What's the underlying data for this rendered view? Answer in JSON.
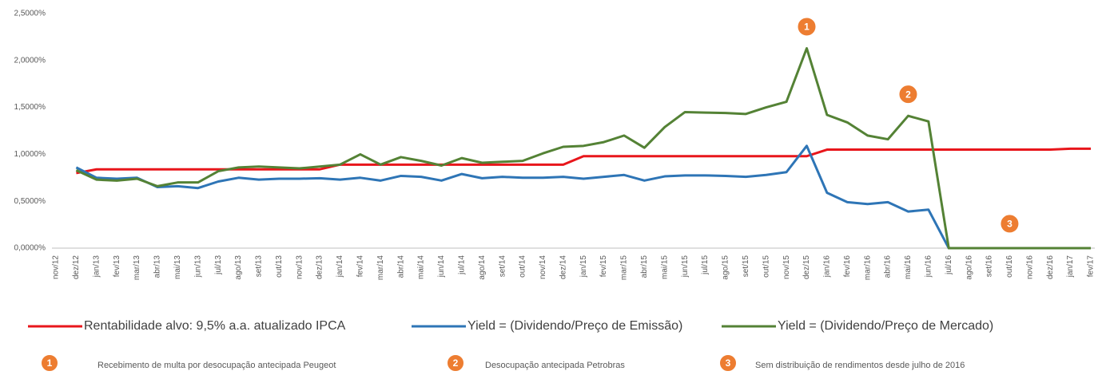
{
  "chart_data": {
    "type": "line",
    "categories": [
      "nov/12",
      "dez/12",
      "jan/13",
      "fev/13",
      "mar/13",
      "abr/13",
      "mai/13",
      "jun/13",
      "jul/13",
      "ago/13",
      "set/13",
      "out/13",
      "nov/13",
      "dez/13",
      "jan/14",
      "fev/14",
      "mar/14",
      "abr/14",
      "mai/14",
      "jun/14",
      "jul/14",
      "ago/14",
      "set/14",
      "out/14",
      "nov/14",
      "dez/14",
      "jan/15",
      "fev/15",
      "mar/15",
      "abr/15",
      "mai/15",
      "jun/15",
      "jul/15",
      "ago/15",
      "set/15",
      "out/15",
      "nov/15",
      "dez/15",
      "jan/16",
      "fev/16",
      "mar/16",
      "abr/16",
      "mai/16",
      "jun/16",
      "jul/16",
      "ago/16",
      "set/16",
      "out/16",
      "nov/16",
      "dez/16",
      "jan/17",
      "fev/17"
    ],
    "series": [
      {
        "name": "Rentabilidade alvo: 9,5% a.a. atualizado IPCA",
        "color": "#e8161b",
        "values": [
          null,
          0.8,
          0.84,
          0.84,
          0.84,
          0.84,
          0.84,
          0.84,
          0.84,
          0.84,
          0.84,
          0.84,
          0.84,
          0.84,
          0.89,
          0.89,
          0.89,
          0.89,
          0.89,
          0.89,
          0.89,
          0.89,
          0.89,
          0.89,
          0.89,
          0.89,
          0.98,
          0.98,
          0.98,
          0.98,
          0.98,
          0.98,
          0.98,
          0.98,
          0.98,
          0.98,
          0.98,
          0.98,
          1.05,
          1.05,
          1.05,
          1.05,
          1.05,
          1.05,
          1.05,
          1.05,
          1.05,
          1.05,
          1.05,
          1.05,
          1.06,
          1.06
        ]
      },
      {
        "name": "Yield = (Dividendo/Preço de Emissão)",
        "color": "#2e75b6",
        "values": [
          null,
          0.86,
          0.75,
          0.74,
          0.75,
          0.65,
          0.66,
          0.64,
          0.71,
          0.75,
          0.73,
          0.74,
          0.74,
          0.745,
          0.73,
          0.75,
          0.72,
          0.77,
          0.76,
          0.72,
          0.79,
          0.745,
          0.76,
          0.75,
          0.75,
          0.76,
          0.74,
          0.76,
          0.78,
          0.72,
          0.765,
          0.775,
          0.775,
          0.77,
          0.76,
          0.78,
          0.81,
          1.09,
          0.59,
          0.49,
          0.47,
          0.49,
          0.39,
          0.41,
          0,
          0,
          0,
          0,
          0,
          0,
          0,
          0
        ]
      },
      {
        "name": "Yield = (Dividendo/Preço de Mercado)",
        "color": "#548235",
        "values": [
          null,
          0.83,
          0.73,
          0.72,
          0.74,
          0.66,
          0.7,
          0.7,
          0.82,
          0.86,
          0.87,
          0.86,
          0.85,
          0.87,
          0.89,
          1.0,
          0.89,
          0.97,
          0.93,
          0.88,
          0.96,
          0.91,
          0.92,
          0.93,
          1.01,
          1.08,
          1.09,
          1.13,
          1.2,
          1.07,
          1.29,
          1.45,
          1.445,
          1.44,
          1.43,
          1.5,
          1.56,
          2.13,
          1.42,
          1.34,
          1.2,
          1.16,
          1.41,
          1.35,
          0,
          0,
          0,
          0,
          0,
          0,
          0,
          0
        ]
      }
    ],
    "ylim": [
      0,
      2.5
    ],
    "yticks": [
      {
        "value": 0,
        "label": "0,0000%"
      },
      {
        "value": 0.5,
        "label": "0,5000%"
      },
      {
        "value": 1,
        "label": "1,0000%"
      },
      {
        "value": 1.5,
        "label": "1,5000%"
      },
      {
        "value": 2,
        "label": "2,0000%"
      },
      {
        "value": 2.5,
        "label": "2,5000%"
      }
    ],
    "grid": false,
    "legend": "bottom",
    "annotations": [
      {
        "label": "1",
        "text": "Recebimento de multa por desocupação antecipada Peugeot",
        "x": "dez/15",
        "y": 2.36
      },
      {
        "label": "2",
        "text": "Desocupação antecipada Petrobras",
        "x": "mai/16",
        "y": 1.64
      },
      {
        "label": "3",
        "text": "Sem distribuição de rendimentos desde julho de 2016",
        "x": "out/16",
        "y": 0.26
      }
    ]
  }
}
